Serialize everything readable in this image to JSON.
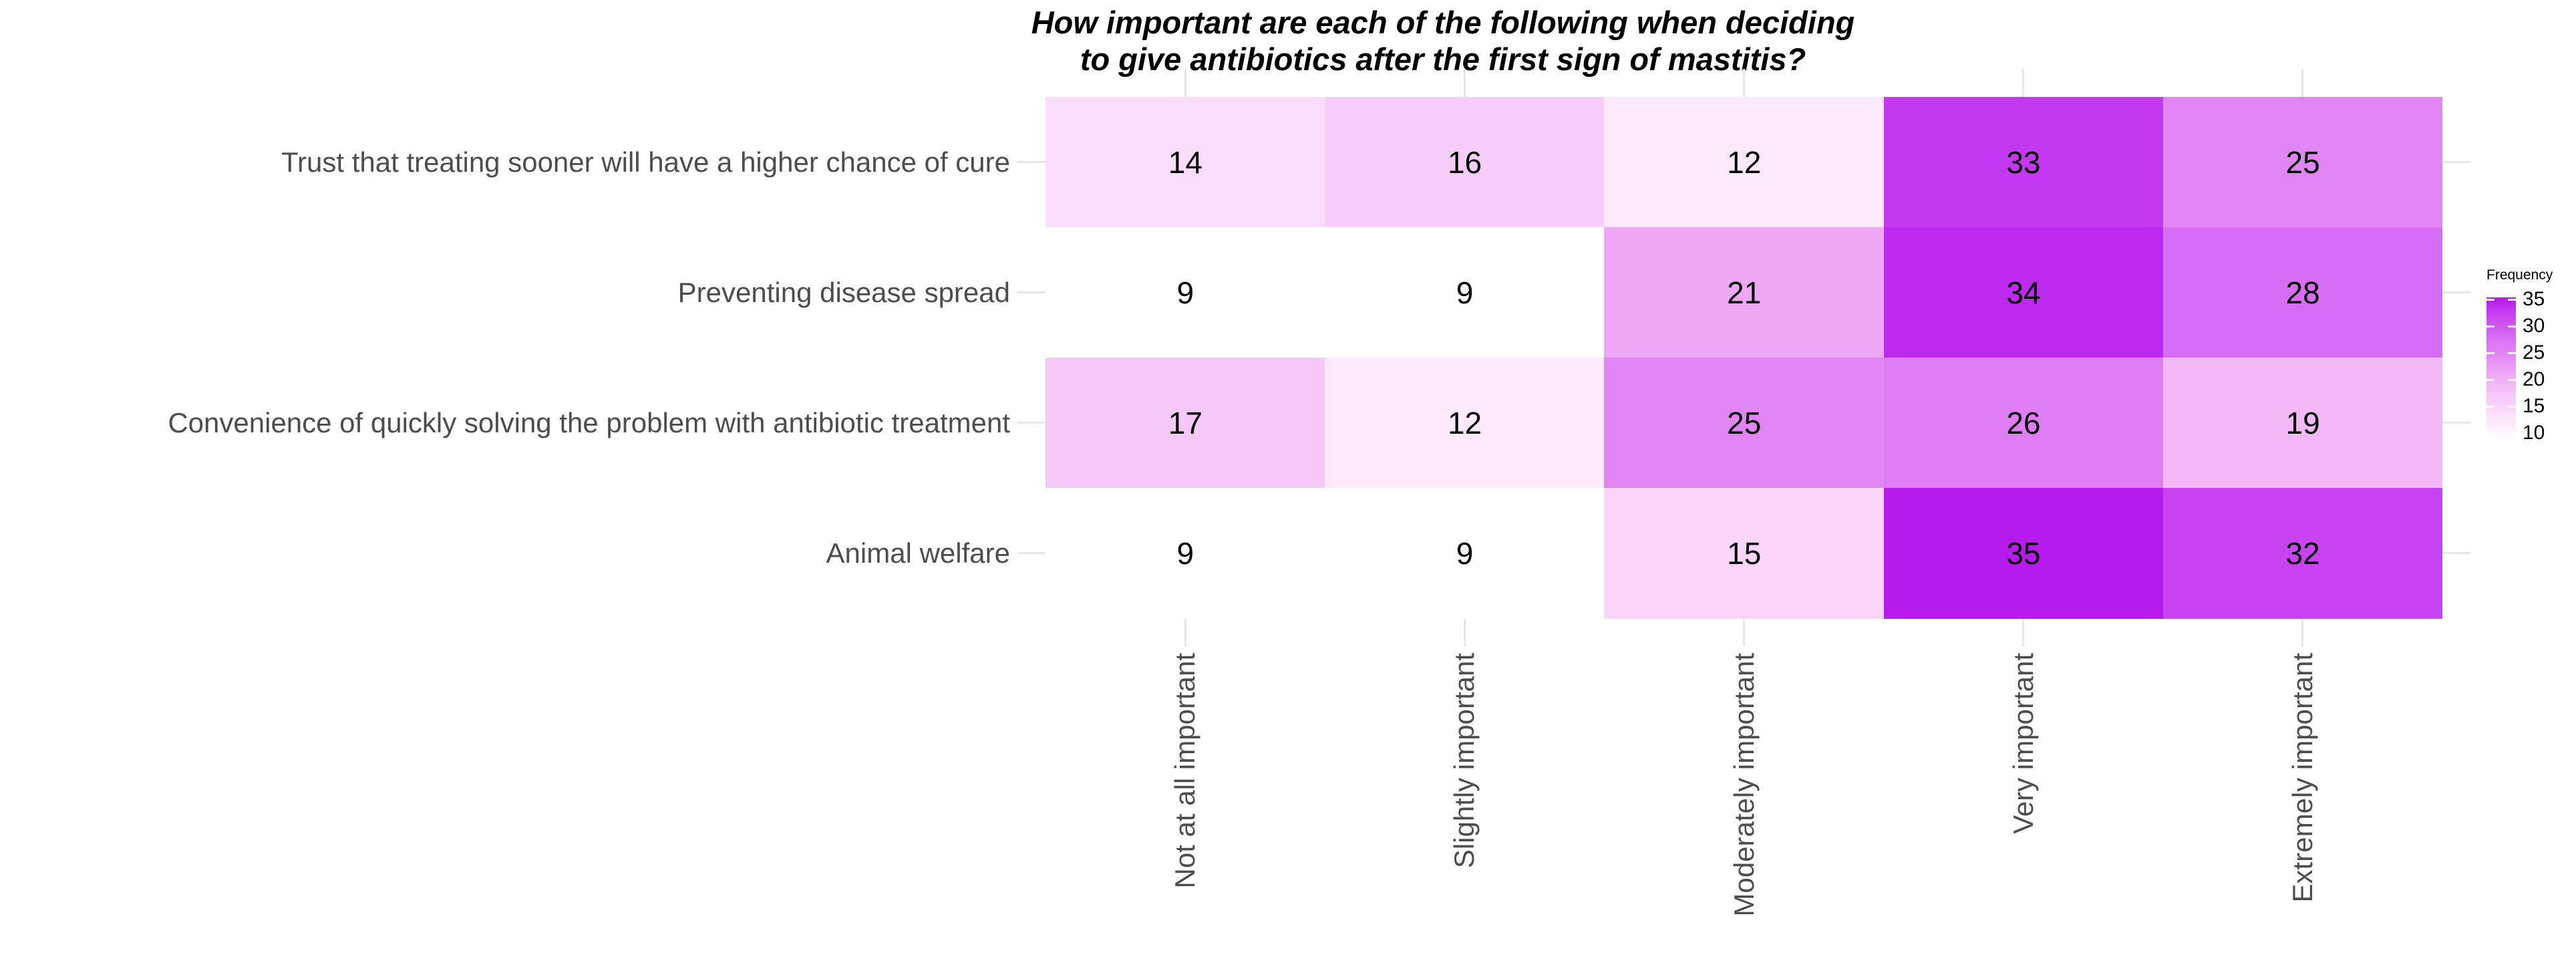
{
  "title": {
    "line1": "How important are each of the following when deciding",
    "line2": "to give antibiotics after the first sign of mastitis?"
  },
  "chart_data": {
    "type": "heatmap",
    "title": "How important are each of the following when deciding to give antibiotics after the first sign of mastitis?",
    "rows": [
      "Trust that treating sooner will have a higher chance of cure",
      "Preventing disease spread",
      "Convenience of quickly solving the problem with antibiotic treatment",
      "Animal welfare"
    ],
    "columns": [
      "Not at all important",
      "Slightly important",
      "Moderately important",
      "Very important",
      "Extremely important"
    ],
    "values": [
      [
        14,
        16,
        12,
        33,
        25
      ],
      [
        9,
        9,
        21,
        34,
        28
      ],
      [
        17,
        12,
        25,
        26,
        19
      ],
      [
        9,
        9,
        15,
        35,
        32
      ]
    ],
    "legend": {
      "title": "Frequency",
      "ticks": [
        35,
        30,
        25,
        20,
        15,
        10
      ],
      "min": 9,
      "max": 35
    },
    "colors": {
      "low": "#FFFFFF",
      "high": "#B61BEE"
    },
    "value_colors": {
      "9": "#FFFFFF",
      "12": "#FCE9FC",
      "14": "#FADCFB",
      "15": "#F9D5FA",
      "16": "#F7CEF9",
      "17": "#F6C8F8",
      "19": "#F3B9F7",
      "21": "#EFA8F6",
      "25": "#E285F4",
      "26": "#DF7DF4",
      "28": "#D76DF2",
      "32": "#C844F0",
      "33": "#C338F0",
      "34": "#BD2AEF",
      "35": "#B61BEE"
    },
    "grid": false,
    "legend_position": "right"
  }
}
